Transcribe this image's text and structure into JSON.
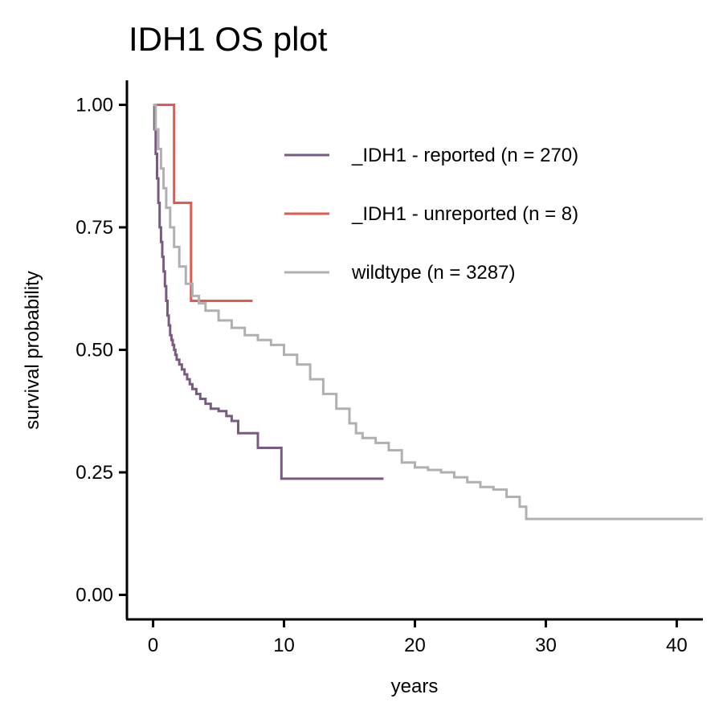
{
  "chart_data": {
    "type": "line",
    "title": "IDH1 OS plot",
    "xlabel": "years",
    "ylabel": "survival probability",
    "xlim": [
      -2,
      42
    ],
    "ylim": [
      -0.05,
      1.05
    ],
    "x_ticks": [
      0,
      10,
      20,
      30,
      40
    ],
    "x_tick_labels": [
      "0",
      "10",
      "20",
      "30",
      "40"
    ],
    "y_ticks": [
      0,
      0.25,
      0.5,
      0.75,
      1.0
    ],
    "y_tick_labels": [
      "0.00",
      "0.25",
      "0.50",
      "0.75",
      "1.00"
    ],
    "grid": false,
    "legend_position": "top-right",
    "step": true,
    "series": [
      {
        "name": "_IDH1 - reported (n = 270)",
        "color": "#7a5a82",
        "points": [
          [
            0,
            1.0
          ],
          [
            0.1,
            0.95
          ],
          [
            0.2,
            0.9
          ],
          [
            0.3,
            0.85
          ],
          [
            0.4,
            0.8
          ],
          [
            0.5,
            0.75
          ],
          [
            0.6,
            0.72
          ],
          [
            0.7,
            0.69
          ],
          [
            0.8,
            0.66
          ],
          [
            0.9,
            0.63
          ],
          [
            1.0,
            0.6
          ],
          [
            1.1,
            0.57
          ],
          [
            1.2,
            0.55
          ],
          [
            1.3,
            0.53
          ],
          [
            1.4,
            0.52
          ],
          [
            1.5,
            0.51
          ],
          [
            1.6,
            0.5
          ],
          [
            1.7,
            0.49
          ],
          [
            1.8,
            0.48
          ],
          [
            2.0,
            0.47
          ],
          [
            2.2,
            0.46
          ],
          [
            2.4,
            0.45
          ],
          [
            2.6,
            0.44
          ],
          [
            2.8,
            0.43
          ],
          [
            3.0,
            0.42
          ],
          [
            3.3,
            0.41
          ],
          [
            3.6,
            0.4
          ],
          [
            4.0,
            0.39
          ],
          [
            4.4,
            0.38
          ],
          [
            5.0,
            0.375
          ],
          [
            5.6,
            0.365
          ],
          [
            6.0,
            0.355
          ],
          [
            6.5,
            0.33
          ],
          [
            8.0,
            0.3
          ],
          [
            9.8,
            0.237
          ],
          [
            17.6,
            0.237
          ]
        ]
      },
      {
        "name": "_IDH1 - unreported (n = 8)",
        "color": "#e5584f",
        "points": [
          [
            0,
            1.0
          ],
          [
            1.6,
            0.8
          ],
          [
            2.9,
            0.6
          ],
          [
            7.6,
            0.6
          ]
        ]
      },
      {
        "name": "wildtype (n = 3287)",
        "color": "#b0b0b0",
        "points": [
          [
            0,
            1.0
          ],
          [
            0.2,
            0.95
          ],
          [
            0.4,
            0.91
          ],
          [
            0.6,
            0.87
          ],
          [
            0.8,
            0.83
          ],
          [
            1.0,
            0.79
          ],
          [
            1.3,
            0.75
          ],
          [
            1.6,
            0.71
          ],
          [
            2.0,
            0.67
          ],
          [
            2.5,
            0.635
          ],
          [
            3.0,
            0.61
          ],
          [
            3.5,
            0.595
          ],
          [
            4.0,
            0.58
          ],
          [
            5.0,
            0.56
          ],
          [
            6.0,
            0.545
          ],
          [
            7.0,
            0.53
          ],
          [
            8.0,
            0.52
          ],
          [
            9.0,
            0.51
          ],
          [
            10.0,
            0.49
          ],
          [
            11.0,
            0.47
          ],
          [
            12.0,
            0.44
          ],
          [
            13.0,
            0.41
          ],
          [
            14.0,
            0.38
          ],
          [
            15.0,
            0.35
          ],
          [
            15.5,
            0.33
          ],
          [
            16.0,
            0.32
          ],
          [
            17.0,
            0.31
          ],
          [
            18.0,
            0.295
          ],
          [
            19.0,
            0.27
          ],
          [
            20.0,
            0.26
          ],
          [
            21.0,
            0.255
          ],
          [
            22.0,
            0.25
          ],
          [
            23.0,
            0.24
          ],
          [
            24.0,
            0.23
          ],
          [
            25.0,
            0.22
          ],
          [
            26.0,
            0.215
          ],
          [
            27.0,
            0.2
          ],
          [
            28.0,
            0.18
          ],
          [
            28.5,
            0.155
          ],
          [
            42.0,
            0.155
          ]
        ]
      }
    ]
  }
}
